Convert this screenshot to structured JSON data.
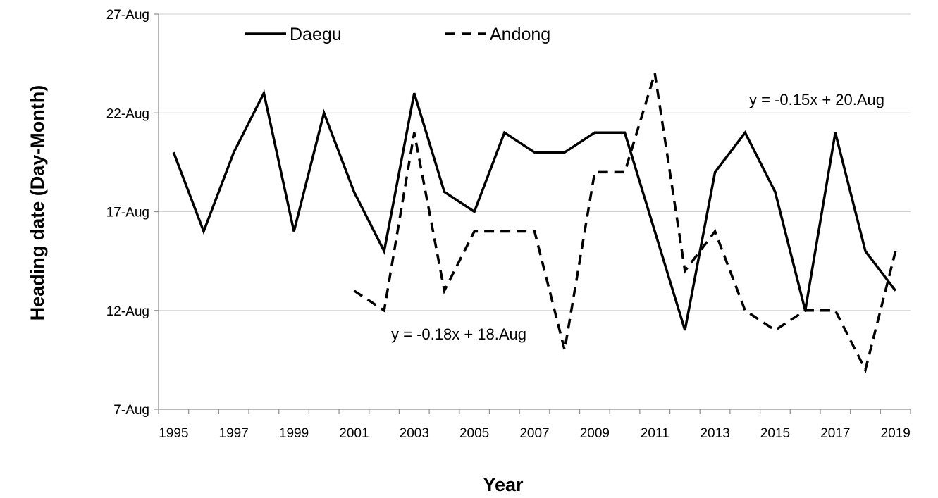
{
  "chart_data": {
    "type": "line",
    "title": "",
    "xlabel": "Year",
    "ylabel": "Heading date (Day-Month)",
    "x": [
      1995,
      1996,
      1997,
      1998,
      1999,
      2000,
      2001,
      2002,
      2003,
      2004,
      2005,
      2006,
      2007,
      2008,
      2009,
      2010,
      2011,
      2012,
      2013,
      2014,
      2015,
      2016,
      2017,
      2018,
      2019
    ],
    "x_tick_labels": [
      "1995",
      "1997",
      "1999",
      "2001",
      "2003",
      "2005",
      "2007",
      "2009",
      "2011",
      "2013",
      "2015",
      "2017",
      "2019"
    ],
    "y_unit": "day of August",
    "ylim": [
      7,
      27
    ],
    "y_ticks": [
      7,
      12,
      17,
      22,
      27
    ],
    "y_tick_labels": [
      "7-Aug",
      "12-Aug",
      "17-Aug",
      "22-Aug",
      "27-Aug"
    ],
    "grid": "horizontal",
    "legend_position": "top-left",
    "series": [
      {
        "name": "Daegu",
        "line_style": "solid",
        "color": "#000000",
        "values": [
          20,
          16,
          20,
          23,
          16,
          22,
          18,
          15,
          23,
          18,
          17,
          21,
          20,
          20,
          21,
          21,
          16,
          11,
          19,
          21,
          18,
          12,
          21,
          15,
          13
        ]
      },
      {
        "name": "Andong",
        "line_style": "dashed",
        "color": "#000000",
        "values": [
          null,
          null,
          null,
          null,
          null,
          null,
          13,
          12,
          21,
          13,
          16,
          16,
          16,
          10,
          19,
          19,
          24,
          14,
          16,
          12,
          11,
          12,
          12,
          9,
          15
        ]
      }
    ],
    "annotations": [
      {
        "text": "y = -0.15x + 20.Aug",
        "series": "Daegu"
      },
      {
        "text": "y = -0.18x + 18.Aug",
        "series": "Andong"
      }
    ]
  }
}
